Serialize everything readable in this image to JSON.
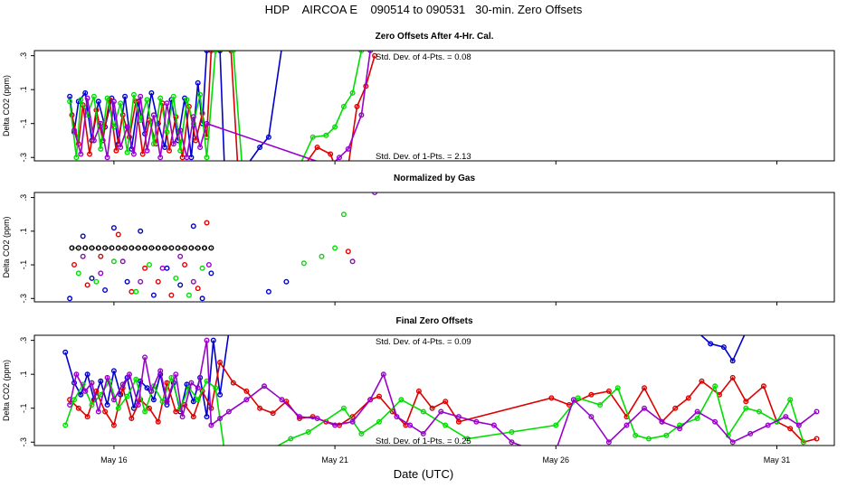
{
  "title": "HDP    AIRCOA E    090514 to 090531   30-min. Zero Offsets",
  "xlabel": "Date (UTC)",
  "colors": {
    "blue": "#0000cc",
    "red": "#dd0000",
    "green": "#00dd00",
    "purple": "#9900cc",
    "black": "#000000"
  },
  "chart_data": [
    {
      "type": "line",
      "title": "Zero Offsets After 4-Hr. Cal.",
      "ylabel": "Delta CO2 (ppm)",
      "ylim": [
        -0.32,
        0.33
      ],
      "yticks": [
        -0.3,
        -0.1,
        0.1,
        0.3
      ],
      "xlim": [
        14.2,
        32.3
      ],
      "xticks": [
        16,
        21,
        26,
        31
      ],
      "annotations": {
        "upper": "Std. Dev. of 4-Pts. =  0.08",
        "lower": "Std. Dev. of 1-Pts. =  2.13"
      },
      "series": [
        {
          "color": "blue",
          "x": [
            15.0,
            15.1,
            15.2,
            15.35,
            15.5,
            15.65,
            15.8,
            15.95,
            16.1,
            16.25,
            16.4,
            16.55,
            16.7,
            16.85,
            17.0,
            17.15,
            17.3,
            17.45,
            17.6,
            17.75,
            17.9,
            18.0,
            18.1,
            18.4,
            18.5,
            19.0,
            19.3,
            19.5,
            19.8
          ],
          "y": [
            0.06,
            -0.15,
            0.03,
            0.08,
            -0.2,
            0.03,
            -0.12,
            0.05,
            -0.22,
            0.06,
            -0.25,
            0.03,
            -0.16,
            0.08,
            -0.1,
            -0.24,
            0.04,
            -0.2,
            0.05,
            -0.3,
            0.14,
            -0.1,
            0.33,
            0.33,
            -0.35,
            -0.35,
            -0.24,
            -0.18,
            0.35
          ]
        },
        {
          "color": "red",
          "x": [
            15.05,
            15.2,
            15.3,
            15.45,
            15.6,
            15.75,
            15.9,
            16.05,
            16.2,
            16.35,
            16.5,
            16.65,
            16.8,
            16.95,
            17.1,
            17.25,
            17.4,
            17.55,
            17.7,
            17.85,
            18.0,
            18.1,
            18.2,
            18.65,
            18.8,
            20.3,
            20.6,
            20.9,
            21.0,
            21.3,
            21.5,
            21.7,
            21.9
          ],
          "y": [
            -0.05,
            -0.22,
            0.01,
            -0.28,
            -0.02,
            -0.2,
            0.04,
            -0.26,
            -0.05,
            -0.18,
            0.03,
            -0.28,
            -0.08,
            -0.22,
            0.02,
            -0.26,
            -0.06,
            -0.3,
            0.0,
            -0.2,
            -0.04,
            -0.18,
            0.33,
            0.33,
            -0.35,
            -0.35,
            -0.24,
            -0.28,
            -0.35,
            -0.35,
            0.0,
            0.12,
            0.3
          ]
        },
        {
          "color": "green",
          "x": [
            15.0,
            15.15,
            15.25,
            15.4,
            15.55,
            15.7,
            15.85,
            16.0,
            16.15,
            16.3,
            16.45,
            16.6,
            16.75,
            16.9,
            17.05,
            17.2,
            17.35,
            17.5,
            17.65,
            17.8,
            17.95,
            18.1,
            18.3,
            18.7,
            18.9,
            20.2,
            20.5,
            20.8,
            21.0,
            21.2,
            21.4,
            21.6
          ],
          "y": [
            0.03,
            -0.3,
            0.04,
            -0.05,
            0.06,
            -0.25,
            0.05,
            -0.12,
            0.02,
            -0.27,
            0.07,
            -0.08,
            0.04,
            -0.22,
            0.05,
            -0.15,
            0.06,
            -0.26,
            0.04,
            -0.1,
            0.07,
            -0.3,
            0.33,
            0.33,
            -0.35,
            -0.35,
            -0.18,
            -0.17,
            -0.12,
            0.0,
            0.08,
            0.33
          ]
        },
        {
          "color": "purple",
          "x": [
            15.1,
            15.25,
            15.4,
            15.55,
            15.7,
            15.85,
            16.0,
            16.15,
            16.3,
            16.45,
            16.6,
            16.75,
            16.9,
            17.05,
            17.2,
            17.35,
            17.5,
            17.65,
            17.8,
            17.95,
            18.1,
            20.9,
            21.1,
            21.3,
            21.6,
            21.8
          ],
          "y": [
            -0.14,
            -0.28,
            0.05,
            -0.2,
            -0.1,
            -0.3,
            0.03,
            -0.24,
            -0.12,
            -0.28,
            0.06,
            -0.26,
            -0.05,
            -0.3,
            0.02,
            -0.22,
            -0.14,
            -0.3,
            -0.06,
            -0.24,
            -0.1,
            -0.35,
            -0.3,
            -0.25,
            -0.05,
            0.33
          ]
        }
      ]
    },
    {
      "type": "scatter",
      "title": "Normalized by Gas",
      "ylabel": "Delta CO2 (ppm)",
      "ylim": [
        -0.32,
        0.33
      ],
      "yticks": [
        -0.3,
        -0.1,
        0.1,
        0.3
      ],
      "xlim": [
        14.2,
        32.3
      ],
      "xticks": [
        16,
        21,
        26,
        31
      ],
      "reference_level": 0.0,
      "series": [
        {
          "color": "black",
          "x": [
            15.05,
            15.2,
            15.35,
            15.5,
            15.65,
            15.8,
            15.95,
            16.1,
            16.25,
            16.4,
            16.55,
            16.7,
            16.85,
            17.0,
            17.15,
            17.3,
            17.45,
            17.6,
            17.75,
            17.9,
            18.05,
            18.2
          ],
          "y": [
            0.0,
            0.0,
            0.0,
            0.0,
            0.0,
            0.0,
            0.0,
            0.0,
            0.0,
            0.0,
            0.0,
            0.0,
            0.0,
            0.0,
            0.0,
            0.0,
            0.0,
            0.0,
            0.0,
            0.0,
            0.0,
            0.0
          ]
        },
        {
          "color": "blue",
          "x": [
            15.0,
            15.3,
            15.5,
            15.8,
            16.0,
            16.3,
            16.6,
            16.9,
            17.2,
            17.5,
            17.8,
            18.0,
            18.2,
            19.5,
            19.9
          ],
          "y": [
            -0.3,
            0.07,
            -0.18,
            -0.25,
            0.12,
            -0.2,
            0.1,
            -0.28,
            -0.12,
            -0.22,
            0.13,
            -0.3,
            -0.15,
            -0.26,
            -0.2
          ]
        },
        {
          "color": "red",
          "x": [
            15.1,
            15.4,
            15.7,
            16.1,
            16.4,
            16.7,
            17.0,
            17.3,
            17.6,
            17.9,
            18.1,
            21.3
          ],
          "y": [
            -0.1,
            -0.22,
            -0.05,
            0.08,
            -0.26,
            -0.12,
            -0.2,
            -0.28,
            -0.1,
            -0.24,
            0.15,
            -0.02
          ]
        },
        {
          "color": "green",
          "x": [
            15.2,
            15.6,
            16.0,
            16.5,
            16.8,
            17.4,
            17.7,
            18.0,
            20.3,
            20.7,
            21.0,
            21.2
          ],
          "y": [
            -0.15,
            -0.2,
            -0.08,
            -0.26,
            -0.1,
            -0.18,
            -0.28,
            -0.12,
            -0.09,
            -0.05,
            0.0,
            0.2
          ]
        },
        {
          "color": "purple",
          "x": [
            15.3,
            15.7,
            16.2,
            16.6,
            17.1,
            17.5,
            17.8,
            18.15,
            21.4,
            21.9
          ],
          "y": [
            -0.05,
            -0.15,
            -0.08,
            -0.2,
            -0.12,
            -0.05,
            -0.2,
            -0.1,
            -0.08,
            0.33
          ]
        }
      ]
    },
    {
      "type": "line",
      "title": "Final Zero Offsets",
      "ylabel": "Delta CO2 (ppm)",
      "ylim": [
        -0.32,
        0.33
      ],
      "yticks": [
        -0.3,
        -0.1,
        0.1,
        0.3
      ],
      "xlim": [
        14.2,
        32.3
      ],
      "xticks": [
        16,
        21,
        26,
        31
      ],
      "annotations": {
        "upper": "Std. Dev. of 4-Pts. =  0.09",
        "lower": "Std. Dev. of 1-Pts. =  0.25"
      },
      "series": [
        {
          "color": "blue",
          "x": [
            14.9,
            15.1,
            15.25,
            15.4,
            15.55,
            15.7,
            15.85,
            16.0,
            16.15,
            16.3,
            16.45,
            16.6,
            16.75,
            16.9,
            17.05,
            17.2,
            17.35,
            17.5,
            17.65,
            17.8,
            17.95,
            18.1,
            18.25,
            18.4,
            18.6,
            18.75,
            29.2,
            29.5,
            29.8,
            30.0,
            30.3
          ],
          "y": [
            0.23,
            0.05,
            -0.02,
            0.1,
            -0.05,
            0.06,
            -0.08,
            0.12,
            -0.02,
            0.08,
            -0.1,
            0.06,
            0.02,
            -0.05,
            0.1,
            -0.08,
            0.05,
            -0.12,
            0.04,
            -0.06,
            0.08,
            -0.15,
            0.3,
            -0.02,
            0.35,
            0.35,
            0.35,
            0.28,
            0.26,
            0.18,
            0.35
          ]
        },
        {
          "color": "red",
          "x": [
            15.0,
            15.2,
            15.4,
            15.6,
            15.8,
            16.0,
            16.2,
            16.4,
            16.6,
            16.8,
            17.0,
            17.2,
            17.4,
            17.6,
            17.8,
            18.0,
            18.2,
            18.4,
            18.7,
            19.0,
            19.3,
            19.6,
            19.9,
            20.2,
            20.5,
            20.8,
            21.1,
            21.4,
            21.8,
            22.0,
            22.3,
            22.6,
            22.9,
            23.2,
            23.5,
            23.8,
            25.9,
            26.3,
            26.8,
            27.2,
            27.6,
            28.0,
            28.4,
            28.7,
            29.0,
            29.3,
            29.7,
            30.0,
            30.3,
            30.7,
            31.0,
            31.3,
            31.6,
            31.9
          ],
          "y": [
            -0.05,
            -0.1,
            -0.15,
            0.0,
            -0.12,
            -0.2,
            0.02,
            -0.16,
            -0.05,
            -0.1,
            -0.18,
            0.05,
            -0.12,
            -0.08,
            -0.15,
            0.0,
            -0.1,
            0.17,
            0.05,
            0.0,
            -0.1,
            -0.13,
            -0.06,
            -0.16,
            -0.15,
            -0.18,
            -0.2,
            -0.15,
            -0.05,
            -0.03,
            -0.12,
            -0.2,
            0.0,
            -0.1,
            -0.06,
            -0.18,
            -0.04,
            -0.08,
            -0.02,
            0.0,
            -0.15,
            0.02,
            -0.18,
            -0.1,
            -0.04,
            0.06,
            -0.02,
            0.08,
            -0.06,
            0.03,
            -0.18,
            -0.22,
            -0.3,
            -0.28
          ]
        },
        {
          "color": "green",
          "x": [
            14.9,
            15.1,
            15.3,
            15.5,
            15.7,
            15.9,
            16.1,
            16.3,
            16.5,
            16.7,
            16.9,
            17.1,
            17.3,
            17.5,
            17.7,
            17.9,
            18.1,
            18.3,
            18.5,
            19.5,
            20.0,
            20.4,
            21.2,
            21.6,
            22.0,
            22.5,
            23.0,
            23.5,
            24.0,
            25.0,
            26.0,
            26.5,
            27.0,
            27.4,
            27.8,
            28.1,
            28.5,
            28.8,
            29.2,
            29.6,
            29.9,
            30.3,
            30.6,
            31.0,
            31.3,
            31.6
          ],
          "y": [
            -0.2,
            -0.05,
            0.04,
            -0.08,
            -0.02,
            0.06,
            -0.1,
            -0.03,
            0.07,
            -0.12,
            0.03,
            -0.06,
            0.08,
            -0.1,
            0.02,
            -0.05,
            0.06,
            0.02,
            -0.35,
            -0.35,
            -0.28,
            -0.24,
            -0.1,
            -0.25,
            -0.18,
            -0.05,
            -0.12,
            -0.2,
            -0.28,
            -0.24,
            -0.2,
            -0.04,
            -0.08,
            0.02,
            -0.26,
            -0.28,
            -0.26,
            -0.2,
            -0.16,
            0.03,
            -0.26,
            -0.1,
            -0.12,
            -0.18,
            -0.05,
            -0.3
          ]
        },
        {
          "color": "purple",
          "x": [
            15.0,
            15.15,
            15.35,
            15.5,
            15.65,
            15.85,
            16.0,
            16.2,
            16.35,
            16.55,
            16.7,
            16.85,
            17.05,
            17.2,
            17.4,
            17.55,
            17.75,
            17.9,
            18.1,
            18.2,
            18.4,
            18.6,
            19.0,
            19.4,
            19.8,
            20.2,
            20.6,
            21.0,
            21.4,
            21.8,
            22.1,
            22.4,
            22.7,
            23.0,
            23.4,
            23.8,
            24.2,
            24.6,
            25.0,
            25.5,
            26.0,
            26.4,
            26.8,
            27.2,
            27.6,
            28.0,
            28.4,
            28.8,
            29.2,
            29.6,
            30.0,
            30.4,
            30.8,
            31.2,
            31.5,
            31.9
          ],
          "y": [
            -0.08,
            0.1,
            0.0,
            0.05,
            -0.12,
            0.08,
            -0.05,
            0.04,
            0.1,
            -0.08,
            0.2,
            0.0,
            0.12,
            -0.06,
            0.1,
            -0.15,
            0.05,
            0.02,
            0.3,
            -0.2,
            -0.16,
            -0.12,
            -0.05,
            0.03,
            -0.05,
            -0.15,
            -0.16,
            -0.2,
            -0.18,
            -0.05,
            0.1,
            -0.15,
            -0.2,
            -0.25,
            -0.12,
            -0.15,
            -0.18,
            -0.2,
            -0.3,
            -0.35,
            -0.35,
            -0.05,
            -0.15,
            -0.3,
            -0.2,
            -0.1,
            -0.18,
            -0.22,
            -0.12,
            -0.18,
            -0.3,
            -0.25,
            -0.2,
            -0.15,
            -0.2,
            -0.12
          ]
        }
      ]
    }
  ]
}
